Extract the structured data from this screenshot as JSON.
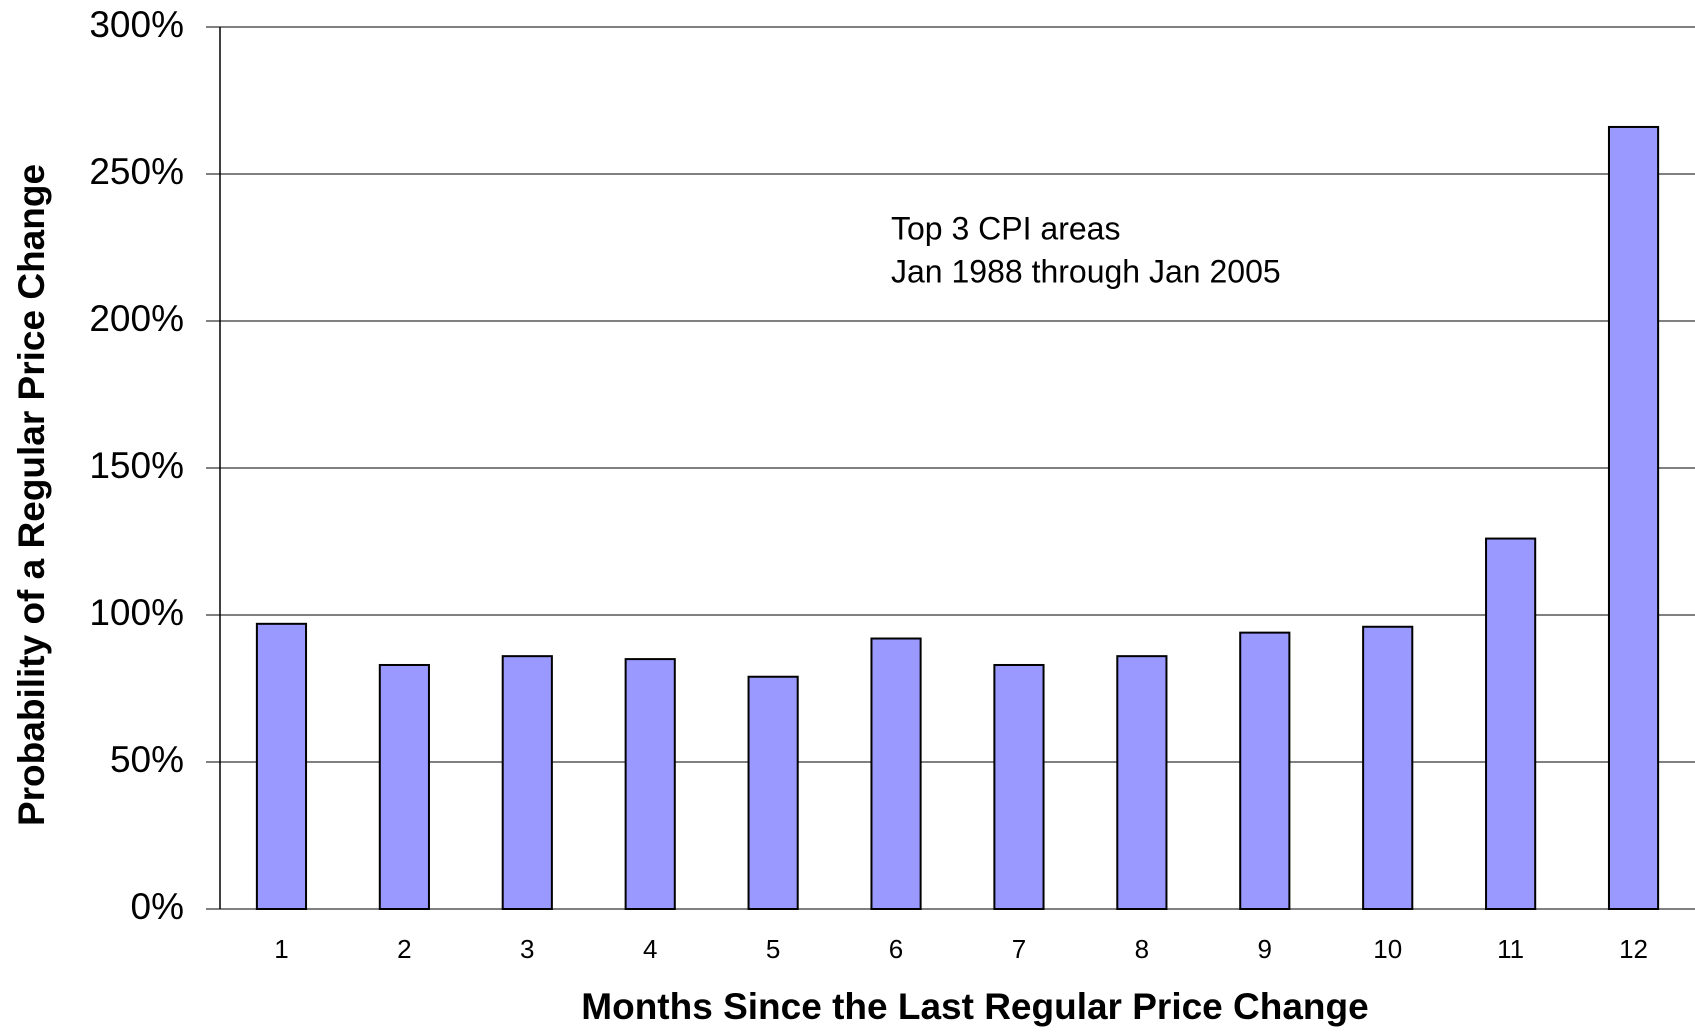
{
  "chart_data": {
    "type": "bar",
    "annotation": [
      "Top 3 CPI areas",
      "Jan 1988 through Jan 2005"
    ],
    "x_label": "Months Since the Last Regular Price Change",
    "y_label": "Probability of a Regular Price Change",
    "categories": [
      "1",
      "2",
      "3",
      "4",
      "5",
      "6",
      "7",
      "8",
      "9",
      "10",
      "11",
      "12"
    ],
    "values": [
      97,
      83,
      86,
      85,
      79,
      92,
      83,
      86,
      94,
      96,
      126,
      266
    ],
    "color": "#9999ff",
    "ylim": [
      0,
      300
    ],
    "yticks": [
      {
        "value": 0,
        "label": "0%"
      },
      {
        "value": 50,
        "label": "50%"
      },
      {
        "value": 100,
        "label": "100%"
      },
      {
        "value": 150,
        "label": "150%"
      },
      {
        "value": 200,
        "label": "200%"
      },
      {
        "value": 250,
        "label": "250%"
      },
      {
        "value": 300,
        "label": "300%"
      }
    ],
    "grid": true
  }
}
